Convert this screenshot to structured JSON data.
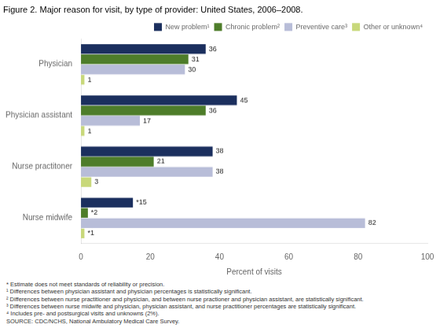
{
  "chart_data": {
    "type": "bar",
    "orientation": "horizontal",
    "title": "Figure 2. Major reason for visit, by type of provider: United States, 2006–2008.",
    "categories": [
      "Physician",
      "Physician assistant",
      "Nurse practitoner",
      "Nurse midwife"
    ],
    "series": [
      {
        "name": "New problem¹",
        "color": "#1b2f5e",
        "values": [
          36,
          45,
          38,
          15
        ],
        "value_labels": [
          "36",
          "45",
          "38",
          "*15"
        ]
      },
      {
        "name": "Chronic problem²",
        "color": "#4e7d2a",
        "values": [
          31,
          36,
          21,
          2
        ],
        "value_labels": [
          "31",
          "36",
          "21",
          "*2"
        ]
      },
      {
        "name": "Preventive care³",
        "color": "#b8bdd8",
        "values": [
          30,
          17,
          38,
          82
        ],
        "value_labels": [
          "30",
          "17",
          "38",
          "82"
        ]
      },
      {
        "name": "Other or unknown⁴",
        "color": "#c8d87a",
        "values": [
          1,
          1,
          3,
          1
        ],
        "value_labels": [
          "1",
          "1",
          "3",
          "*1"
        ]
      }
    ],
    "xlabel": "Percent of visits",
    "xlim": [
      0,
      100
    ],
    "xticks": [
      0,
      20,
      40,
      60,
      80,
      100
    ],
    "grid": false,
    "legend": "upper right",
    "data_labels": true,
    "annotations": [
      "* Estimate does not meet standards of reliability or precision.",
      "¹ Differences between physician assistant and physician percentages is statistically significant.",
      "² Differences between nurse practitioner and physician, and between nurse practioner and physician assistant, are statistically significant.",
      "³ Differences between nurse midwife and physician, physician assistant, and nurse practitioner percentages are statistically significant.",
      "⁴ Includes pre- and postsurgical visits and unknowns (2%).",
      "SOURCE: CDC/NCHS, National Ambulatory Medical Care Survey."
    ]
  }
}
